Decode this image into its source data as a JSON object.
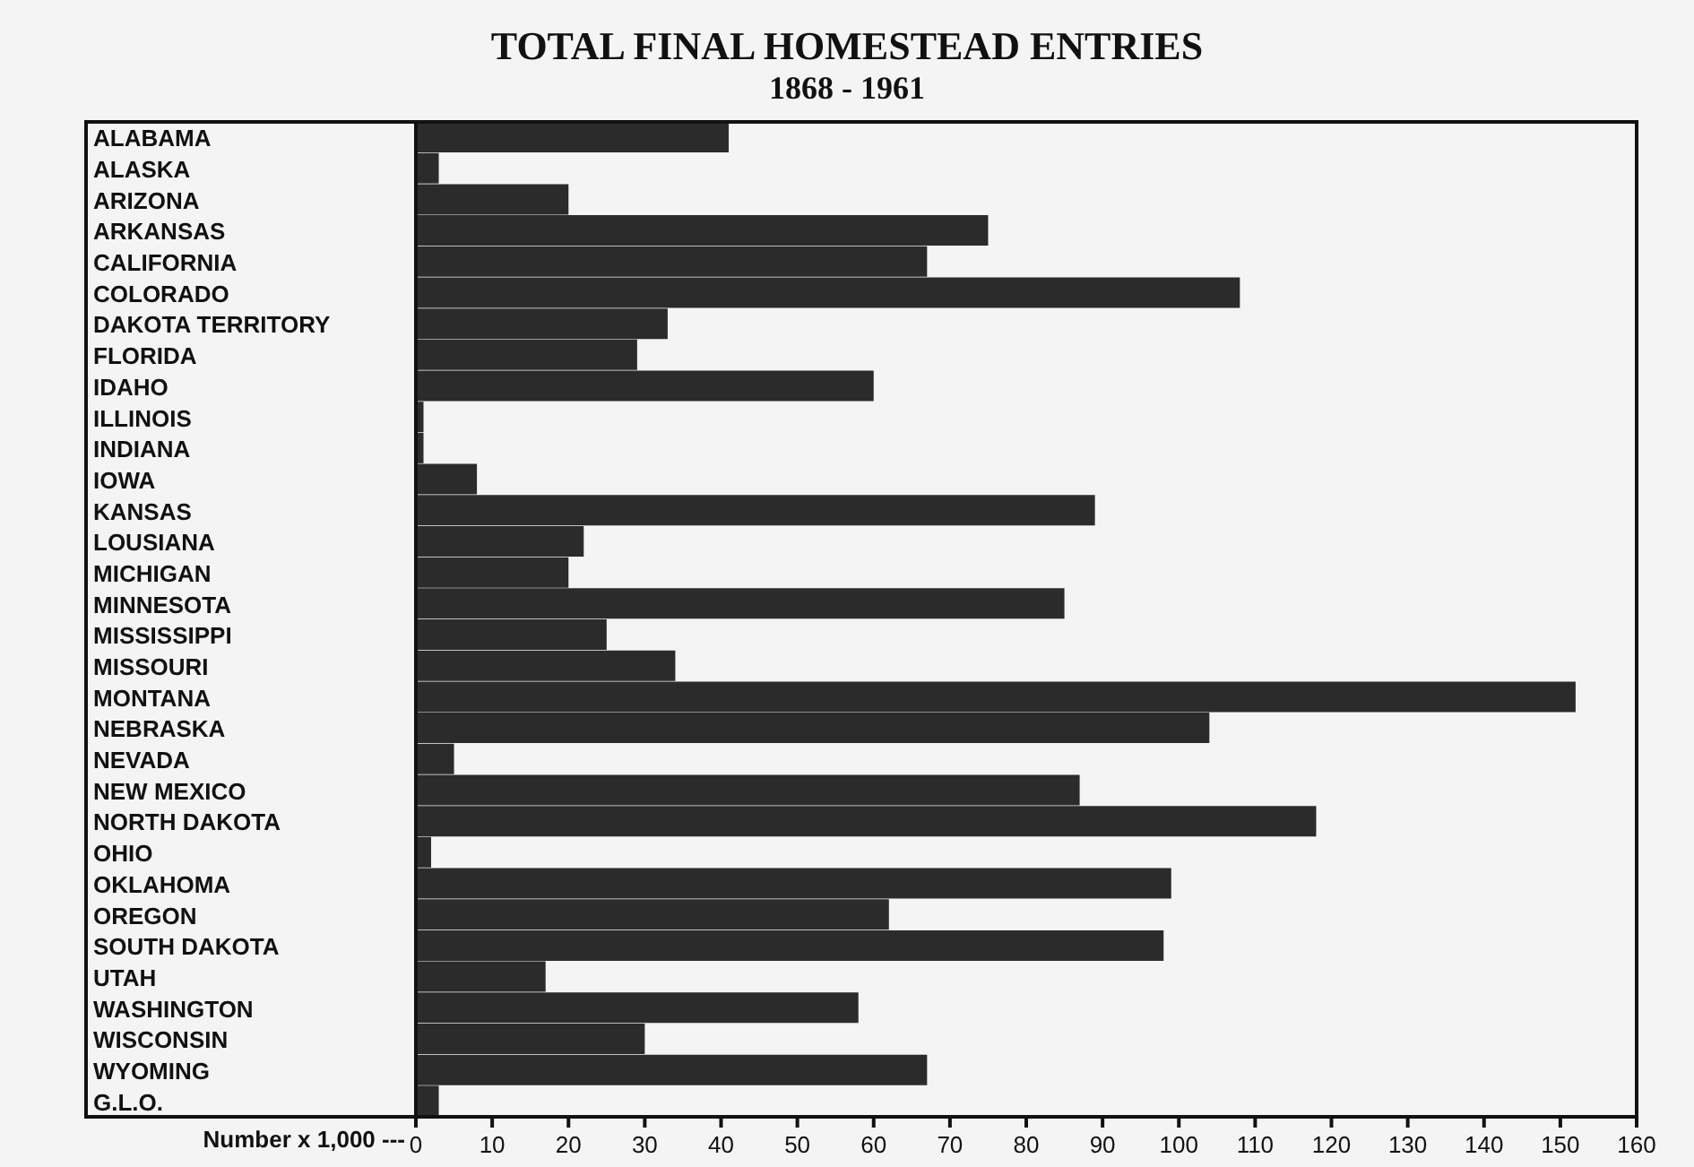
{
  "chart_data": {
    "type": "bar",
    "orientation": "horizontal",
    "title": "TOTAL FINAL HOMESTEAD ENTRIES",
    "subtitle": "1868 - 1961",
    "xlabel": "Number x 1,000 ---",
    "categories": [
      "ALABAMA",
      "ALASKA",
      "ARIZONA",
      "ARKANSAS",
      "CALIFORNIA",
      "COLORADO",
      "DAKOTA TERRITORY",
      "FLORIDA",
      "IDAHO",
      "ILLINOIS",
      "INDIANA",
      "IOWA",
      "KANSAS",
      "LOUSIANA",
      "MICHIGAN",
      "MINNESOTA",
      "MISSISSIPPI",
      "MISSOURI",
      "MONTANA",
      "NEBRASKA",
      "NEVADA",
      "NEW MEXICO",
      "NORTH DAKOTA",
      "OHIO",
      "OKLAHOMA",
      "OREGON",
      "SOUTH DAKOTA",
      "UTAH",
      "WASHINGTON",
      "WISCONSIN",
      "WYOMING",
      "G.L.O."
    ],
    "values": [
      41,
      3,
      20,
      75,
      67,
      108,
      33,
      29,
      60,
      1,
      1,
      8,
      89,
      22,
      20,
      85,
      25,
      34,
      152,
      104,
      5,
      87,
      118,
      2,
      99,
      62,
      98,
      17,
      58,
      30,
      67,
      3
    ],
    "color": "#2b2b2b",
    "xlim": [
      0,
      160
    ],
    "xticks": [
      0,
      10,
      20,
      30,
      40,
      50,
      60,
      70,
      80,
      90,
      100,
      110,
      120,
      130,
      140,
      150,
      160
    ]
  }
}
